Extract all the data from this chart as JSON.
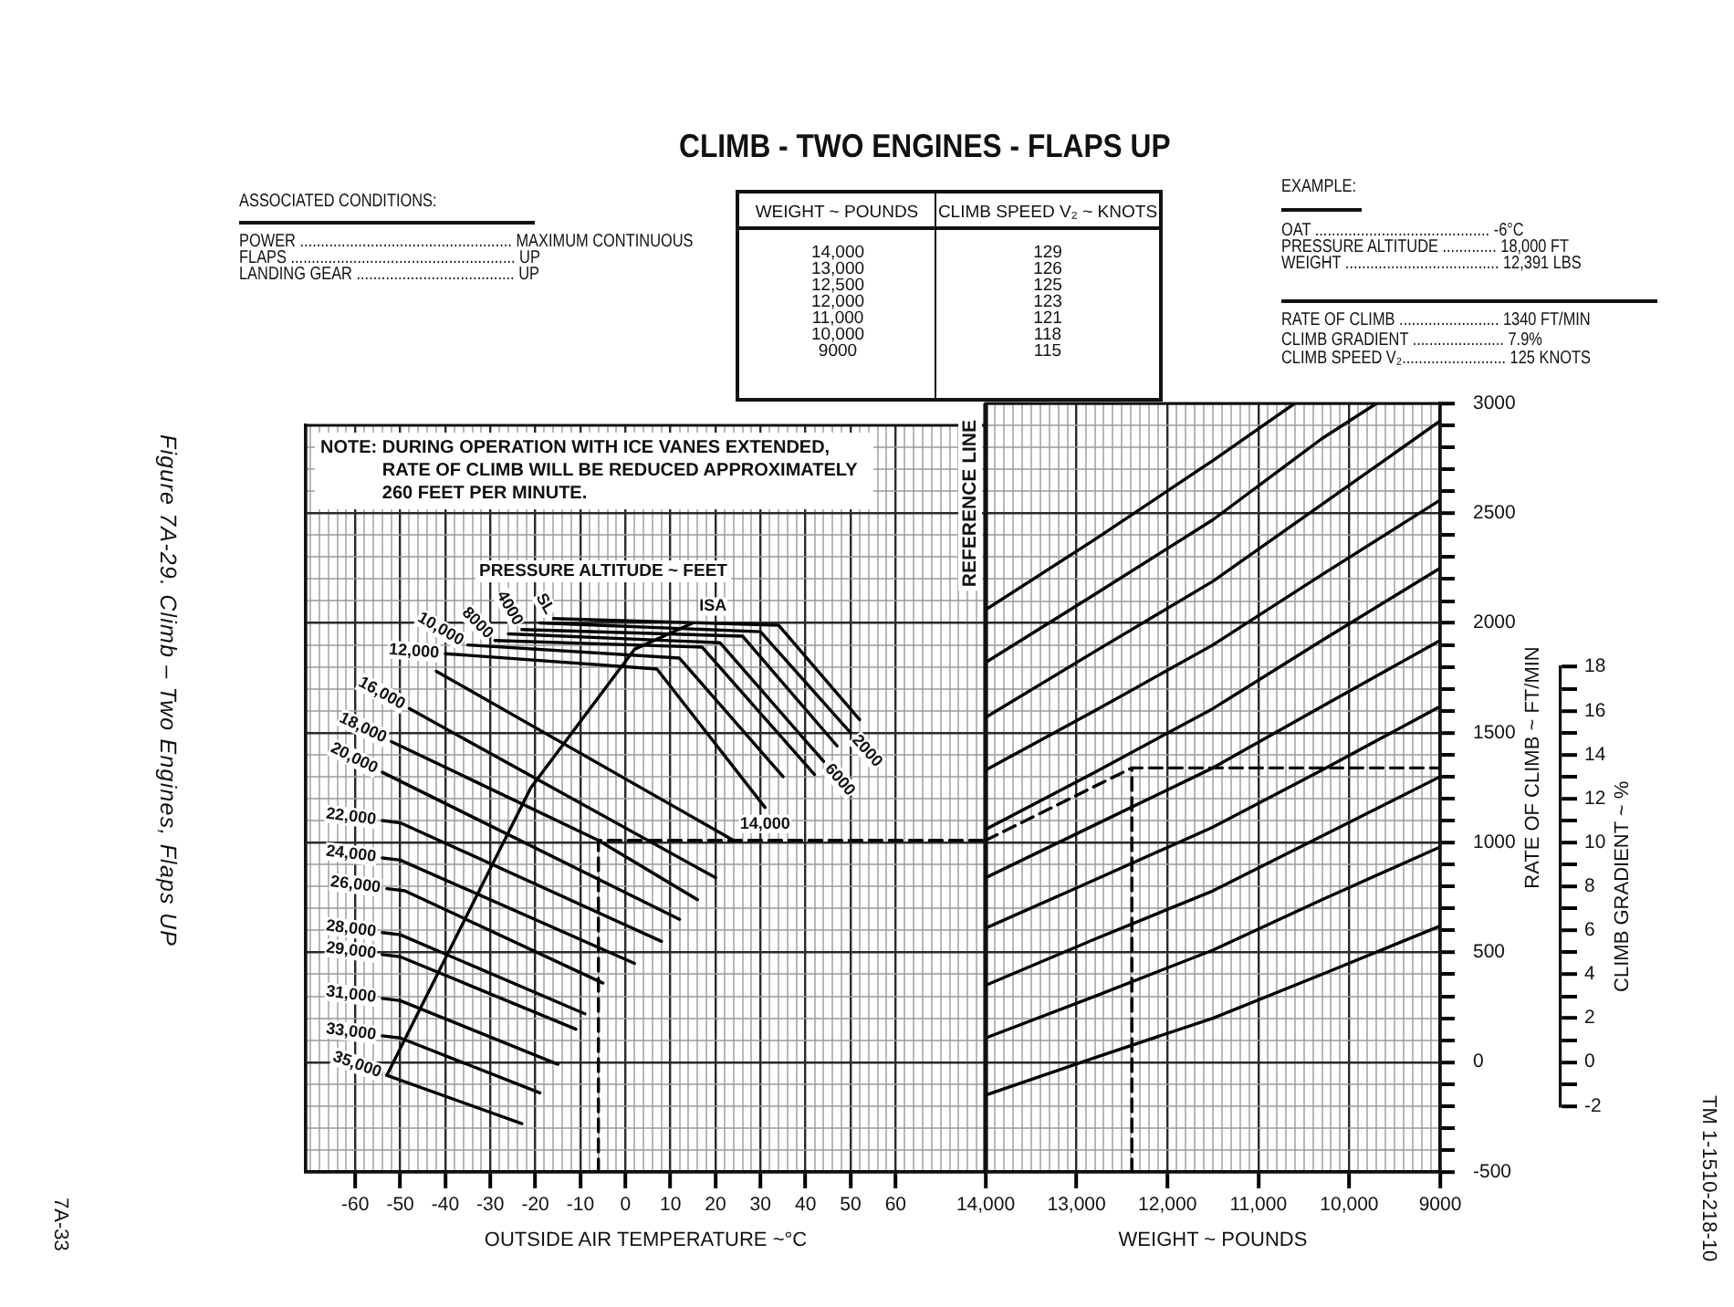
{
  "chart_data": [
    {
      "type": "other",
      "title": "CLIMB - TWO ENGINES - FLAPS UP",
      "annotations": [
        "ASSOCIATED CONDITIONS:",
        "POWER ................................................... MAXIMUM CONTINUOUS",
        "FLAPS ...................................................... UP",
        "LANDING GEAR ...................................... UP",
        "EXAMPLE:",
        "OAT .......................................... -6°C",
        "PRESSURE ALTITUDE ............. 18,000 FT",
        "WEIGHT ..................................... 12,391 LBS",
        "RATE OF CLIMB ........................ 1340 FT/MIN",
        "CLIMB GRADIENT ...................... 7.9%",
        "CLIMB SPEED V₂......................... 125 KNOTS",
        "Figure 7A-29. Climb – Two Engines, Flaps UP",
        "7A-33",
        "TM 1-1510-218-10"
      ]
    },
    {
      "type": "other",
      "xlabel": "WEIGHT ~ POUNDS",
      "ylabel": "CLIMB SPEED V₂ ~ KNOTS",
      "categories": [
        "14,000",
        "13,000",
        "12,500",
        "12,000",
        "11,000",
        "10,000",
        "9000"
      ],
      "values": [
        129,
        126,
        125,
        123,
        121,
        118,
        115
      ],
      "data_labels": true
    },
    {
      "type": "line",
      "xlabel": "OUTSIDE AIR TEMPERATURE ~°C",
      "xlim": [
        -71,
        80
      ],
      "xticks": [
        {
          "value": -70,
          "label": null
        },
        {
          "value": -68,
          "label": null
        },
        {
          "value": -66,
          "label": null
        },
        {
          "value": -64,
          "label": null
        },
        {
          "value": -62,
          "label": null
        },
        -60,
        {
          "value": -58,
          "label": null
        },
        {
          "value": -56,
          "label": null
        },
        {
          "value": -54,
          "label": null
        },
        {
          "value": -52,
          "label": null
        },
        -50,
        {
          "value": -48,
          "label": null
        },
        {
          "value": -46,
          "label": null
        },
        {
          "value": -44,
          "label": null
        },
        {
          "value": -42,
          "label": null
        },
        -40,
        {
          "value": -38,
          "label": null
        },
        {
          "value": -36,
          "label": null
        },
        {
          "value": -34,
          "label": null
        },
        {
          "value": -32,
          "label": null
        },
        -30,
        {
          "value": -28,
          "label": null
        },
        {
          "value": -26,
          "label": null
        },
        {
          "value": -24,
          "label": null
        },
        {
          "value": -22,
          "label": null
        },
        -20,
        {
          "value": -18,
          "label": null
        },
        {
          "value": -16,
          "label": null
        },
        {
          "value": -14,
          "label": null
        },
        {
          "value": -12,
          "label": null
        },
        -10,
        {
          "value": -8,
          "label": null
        },
        {
          "value": -6,
          "label": null
        },
        {
          "value": -4,
          "label": null
        },
        {
          "value": -2,
          "label": null
        },
        0,
        {
          "value": 2,
          "label": null
        },
        {
          "value": 4,
          "label": null
        },
        {
          "value": 6,
          "label": null
        },
        {
          "value": 8,
          "label": null
        },
        10,
        {
          "value": 12,
          "label": null
        },
        {
          "value": 14,
          "label": null
        },
        {
          "value": 16,
          "label": null
        },
        {
          "value": 18,
          "label": null
        },
        20,
        {
          "value": 22,
          "label": null
        },
        {
          "value": 24,
          "label": null
        },
        {
          "value": 26,
          "label": null
        },
        {
          "value": 28,
          "label": null
        },
        30,
        {
          "value": 32,
          "label": null
        },
        {
          "value": 34,
          "label": null
        },
        {
          "value": 36,
          "label": null
        },
        {
          "value": 38,
          "label": null
        },
        40,
        {
          "value": 42,
          "label": null
        },
        {
          "value": 44,
          "label": null
        },
        {
          "value": 46,
          "label": null
        },
        {
          "value": 48,
          "label": null
        },
        50,
        {
          "value": 52,
          "label": null
        },
        {
          "value": 54,
          "label": null
        },
        {
          "value": 56,
          "label": null
        },
        {
          "value": 58,
          "label": null
        },
        60,
        {
          "value": 62,
          "label": null
        },
        {
          "value": 64,
          "label": null
        },
        {
          "value": 66,
          "label": null
        },
        {
          "value": 68,
          "label": null
        },
        {
          "value": 70,
          "label": null
        },
        {
          "value": 72,
          "label": null
        },
        {
          "value": 74,
          "label": null
        },
        {
          "value": 76,
          "label": null
        },
        {
          "value": 78,
          "label": null
        }
      ],
      "ylim": [
        -500,
        2900
      ],
      "yticks": [
        -500,
        {
          "value": -400,
          "label": null
        },
        {
          "value": -300,
          "label": null
        },
        {
          "value": -200,
          "label": null
        },
        {
          "value": -100,
          "label": null
        },
        0,
        {
          "value": 100,
          "label": null
        },
        {
          "value": 200,
          "label": null
        },
        {
          "value": 300,
          "label": null
        },
        {
          "value": 400,
          "label": null
        },
        500,
        {
          "value": 600,
          "label": null
        },
        {
          "value": 700,
          "label": null
        },
        {
          "value": 800,
          "label": null
        },
        {
          "value": 900,
          "label": null
        },
        1000,
        {
          "value": 1100,
          "label": null
        },
        {
          "value": 1200,
          "label": null
        },
        {
          "value": 1300,
          "label": null
        },
        {
          "value": 1400,
          "label": null
        },
        1500,
        {
          "value": 1600,
          "label": null
        },
        {
          "value": 1700,
          "label": null
        },
        {
          "value": 1800,
          "label": null
        },
        {
          "value": 1900,
          "label": null
        },
        2000,
        {
          "value": 2100,
          "label": null
        },
        {
          "value": 2200,
          "label": null
        },
        {
          "value": 2300,
          "label": null
        },
        {
          "value": 2400,
          "label": null
        },
        2500,
        {
          "value": 2600,
          "label": null
        },
        {
          "value": 2700,
          "label": null
        },
        {
          "value": 2800,
          "label": null
        },
        {
          "value": 2900,
          "label": null
        }
      ],
      "tick_labels": "x",
      "grid": true,
      "annotations": [
        "NOTE: DURING OPERATION WITH ICE VANES EXTENDED,\nRATE OF CLIMB WILL BE REDUCED APPROXIMATELY\n260 FEET PER MINUTE.",
        "PRESSURE ALTITUDE ~ FEET"
      ],
      "series": [
        {
          "name": "SL",
          "color": "#000000",
          "x": [
            -16,
            34,
            52
          ],
          "values": [
            2020,
            1990,
            1560
          ]
        },
        {
          "name": "2000",
          "color": "#000000",
          "x": [
            -19,
            30,
            50
          ],
          "values": [
            2000,
            1960,
            1500
          ]
        },
        {
          "name": "4000",
          "color": "#000000",
          "x": [
            -23,
            26,
            47
          ],
          "values": [
            1970,
            1940,
            1440
          ]
        },
        {
          "name": "6000",
          "color": "#000000",
          "x": [
            -26,
            21,
            44
          ],
          "values": [
            1950,
            1910,
            1370
          ]
        },
        {
          "name": "8000",
          "color": "#000000",
          "x": [
            -29,
            17,
            42
          ],
          "values": [
            1920,
            1890,
            1310
          ]
        },
        {
          "name": "10,000",
          "color": "#000000",
          "x": [
            -35,
            12,
            35
          ],
          "values": [
            1900,
            1840,
            1300
          ]
        },
        {
          "name": "12,000",
          "color": "#000000",
          "x": [
            -40,
            7,
            31
          ],
          "values": [
            1860,
            1790,
            1160
          ]
        },
        {
          "name": "14,000",
          "color": "#000000",
          "x": [
            -42,
            24
          ],
          "values": [
            1780,
            1010
          ]
        },
        {
          "name": "16,000",
          "color": "#000000",
          "x": [
            -48,
            20
          ],
          "values": [
            1610,
            840
          ]
        },
        {
          "name": "18,000",
          "color": "#000000",
          "x": [
            -52,
            -6,
            16
          ],
          "values": [
            1460,
            1010,
            740
          ]
        },
        {
          "name": "20,000",
          "color": "#000000",
          "x": [
            -54,
            12
          ],
          "values": [
            1320,
            650
          ]
        },
        {
          "name": "22,000",
          "color": "#000000",
          "x": [
            -54,
            -50,
            8
          ],
          "values": [
            1100,
            1090,
            550
          ]
        },
        {
          "name": "24,000",
          "color": "#000000",
          "x": [
            -54,
            -50,
            2
          ],
          "values": [
            930,
            920,
            450
          ]
        },
        {
          "name": "26,000",
          "color": "#000000",
          "x": [
            -53,
            -49,
            -5
          ],
          "values": [
            790,
            780,
            360
          ]
        },
        {
          "name": "28,000",
          "color": "#000000",
          "x": [
            -54,
            -50,
            -9
          ],
          "values": [
            590,
            580,
            220
          ]
        },
        {
          "name": "29,000",
          "color": "#000000",
          "x": [
            -54,
            -50,
            -11
          ],
          "values": [
            490,
            480,
            150
          ]
        },
        {
          "name": "31,000",
          "color": "#000000",
          "x": [
            -54,
            -50,
            -15
          ],
          "values": [
            290,
            280,
            -10
          ]
        },
        {
          "name": "33,000",
          "color": "#000000",
          "x": [
            -54,
            -50,
            -19
          ],
          "values": [
            120,
            110,
            -140
          ]
        },
        {
          "name": "35,000",
          "color": "#000000",
          "x": [
            -53,
            -23
          ],
          "values": [
            -60,
            -280
          ]
        },
        {
          "name": "ISA",
          "color": "#000000",
          "x": [
            -53,
            -21,
            2,
            15
          ],
          "values": [
            -60,
            1250,
            1880,
            2000
          ]
        },
        {
          "color": "#000000",
          "line_style": "dashed",
          "x": [
            -6,
            -6,
            80
          ],
          "values": [
            -500,
            1010,
            1010
          ]
        }
      ]
    },
    {
      "type": "line",
      "xlabel": "WEIGHT ~ POUNDS",
      "y2label": "RATE OF CLIMB ~ FT/MIN",
      "y3label": "CLIMB GRADIENT ~ %",
      "xlim": [
        14000,
        9000
      ],
      "xticks": [
        {
          "value": 14000,
          "label": "14,000"
        },
        {
          "value": 13900,
          "label": null
        },
        {
          "value": 13800,
          "label": null
        },
        {
          "value": 13700,
          "label": null
        },
        {
          "value": 13600,
          "label": null
        },
        {
          "value": 13500,
          "label": null
        },
        {
          "value": 13400,
          "label": null
        },
        {
          "value": 13300,
          "label": null
        },
        {
          "value": 13200,
          "label": null
        },
        {
          "value": 13100,
          "label": null
        },
        {
          "value": 13000,
          "label": "13,000"
        },
        {
          "value": 12900,
          "label": null
        },
        {
          "value": 12800,
          "label": null
        },
        {
          "value": 12700,
          "label": null
        },
        {
          "value": 12600,
          "label": null
        },
        {
          "value": 12500,
          "label": null
        },
        {
          "value": 12400,
          "label": null
        },
        {
          "value": 12300,
          "label": null
        },
        {
          "value": 12200,
          "label": null
        },
        {
          "value": 12100,
          "label": null
        },
        {
          "value": 12000,
          "label": "12,000"
        },
        {
          "value": 11900,
          "label": null
        },
        {
          "value": 11800,
          "label": null
        },
        {
          "value": 11700,
          "label": null
        },
        {
          "value": 11600,
          "label": null
        },
        {
          "value": 11500,
          "label": null
        },
        {
          "value": 11400,
          "label": null
        },
        {
          "value": 11300,
          "label": null
        },
        {
          "value": 11200,
          "label": null
        },
        {
          "value": 11100,
          "label": null
        },
        {
          "value": 11000,
          "label": "11,000"
        },
        {
          "value": 10900,
          "label": null
        },
        {
          "value": 10800,
          "label": null
        },
        {
          "value": 10700,
          "label": null
        },
        {
          "value": 10600,
          "label": null
        },
        {
          "value": 10500,
          "label": null
        },
        {
          "value": 10400,
          "label": null
        },
        {
          "value": 10300,
          "label": null
        },
        {
          "value": 10200,
          "label": null
        },
        {
          "value": 10100,
          "label": null
        },
        {
          "value": 10000,
          "label": "10,000"
        },
        {
          "value": 9900,
          "label": null
        },
        {
          "value": 9800,
          "label": null
        },
        {
          "value": 9700,
          "label": null
        },
        {
          "value": 9600,
          "label": null
        },
        {
          "value": 9500,
          "label": null
        },
        {
          "value": 9400,
          "label": null
        },
        {
          "value": 9300,
          "label": null
        },
        {
          "value": 9200,
          "label": null
        },
        {
          "value": 9100,
          "label": null
        },
        9000
      ],
      "y2lim": [
        -500,
        3000
      ],
      "y2ticks": [
        -500,
        {
          "value": -400,
          "label": null
        },
        {
          "value": -300,
          "label": null
        },
        {
          "value": -200,
          "label": null
        },
        {
          "value": -100,
          "label": null
        },
        0,
        {
          "value": 100,
          "label": null
        },
        {
          "value": 200,
          "label": null
        },
        {
          "value": 300,
          "label": null
        },
        {
          "value": 400,
          "label": null
        },
        500,
        {
          "value": 600,
          "label": null
        },
        {
          "value": 700,
          "label": null
        },
        {
          "value": 800,
          "label": null
        },
        {
          "value": 900,
          "label": null
        },
        1000,
        {
          "value": 1100,
          "label": null
        },
        {
          "value": 1200,
          "label": null
        },
        {
          "value": 1300,
          "label": null
        },
        {
          "value": 1400,
          "label": null
        },
        1500,
        {
          "value": 1600,
          "label": null
        },
        {
          "value": 1700,
          "label": null
        },
        {
          "value": 1800,
          "label": null
        },
        {
          "value": 1900,
          "label": null
        },
        2000,
        {
          "value": 2100,
          "label": null
        },
        {
          "value": 2200,
          "label": null
        },
        {
          "value": 2300,
          "label": null
        },
        {
          "value": 2400,
          "label": null
        },
        2500,
        {
          "value": 2600,
          "label": null
        },
        {
          "value": 2700,
          "label": null
        },
        {
          "value": 2800,
          "label": null
        },
        {
          "value": 2900,
          "label": null
        },
        3000
      ],
      "y3lim": [
        -2,
        18
      ],
      "y3ticks": [
        -2,
        {
          "value": -1,
          "label": null
        },
        0,
        {
          "value": 1,
          "label": null
        },
        2,
        {
          "value": 3,
          "label": null
        },
        4,
        {
          "value": 5,
          "label": null
        },
        6,
        {
          "value": 7,
          "label": null
        },
        8,
        {
          "value": 9,
          "label": null
        },
        10,
        {
          "value": 11,
          "label": null
        },
        12,
        {
          "value": 13,
          "label": null
        },
        14,
        {
          "value": 15,
          "label": null
        },
        16,
        {
          "value": 17,
          "label": null
        },
        18
      ],
      "grid": true,
      "ref_lines": [
        {
          "axis": "x",
          "value": 14000,
          "label": "REFERENCE LINE"
        }
      ],
      "series": [
        {
          "color": "#000000",
          "axis": "y2",
          "x": [
            14000,
            12800,
            11500,
            10600
          ],
          "values": [
            2060,
            2380,
            2740,
            3000
          ]
        },
        {
          "color": "#000000",
          "axis": "y2",
          "x": [
            14000,
            12800,
            11500,
            10300,
            9700
          ],
          "values": [
            1820,
            2130,
            2470,
            2840,
            3000
          ]
        },
        {
          "color": "#000000",
          "axis": "y2",
          "x": [
            14000,
            12800,
            11500,
            10300,
            9000
          ],
          "values": [
            1570,
            1870,
            2190,
            2540,
            2920
          ]
        },
        {
          "color": "#000000",
          "axis": "y2",
          "x": [
            14000,
            12800,
            11500,
            10300,
            9000
          ],
          "values": [
            1330,
            1600,
            1900,
            2220,
            2560
          ]
        },
        {
          "color": "#000000",
          "axis": "y2",
          "x": [
            14000,
            12800,
            11500,
            10300,
            9000
          ],
          "values": [
            1060,
            1320,
            1610,
            1920,
            2250
          ]
        },
        {
          "color": "#000000",
          "axis": "y2",
          "x": [
            14000,
            12800,
            11500,
            10300,
            9000
          ],
          "values": [
            840,
            1080,
            1340,
            1620,
            1920
          ]
        },
        {
          "color": "#000000",
          "axis": "y2",
          "x": [
            14000,
            12800,
            11500,
            10300,
            9000
          ],
          "values": [
            610,
            830,
            1070,
            1330,
            1620
          ]
        },
        {
          "color": "#000000",
          "axis": "y2",
          "x": [
            14000,
            12800,
            11500,
            10300,
            9000
          ],
          "values": [
            350,
            560,
            780,
            1030,
            1300
          ]
        },
        {
          "color": "#000000",
          "axis": "y2",
          "x": [
            14000,
            12800,
            11500,
            10300,
            9000
          ],
          "values": [
            110,
            300,
            510,
            740,
            980
          ]
        },
        {
          "color": "#000000",
          "axis": "y2",
          "x": [
            14000,
            12800,
            11500,
            10300,
            9000
          ],
          "values": [
            -150,
            20,
            200,
            400,
            620
          ]
        },
        {
          "color": "#000000",
          "axis": "y2",
          "line_style": "dashed",
          "x": [
            14000,
            12391,
            9000
          ],
          "values": [
            1010,
            1340,
            1340
          ]
        },
        {
          "color": "#000000",
          "axis": "y2",
          "line_style": "dashed",
          "x": [
            12391,
            12391
          ],
          "values": [
            -500,
            1340
          ]
        }
      ]
    }
  ]
}
